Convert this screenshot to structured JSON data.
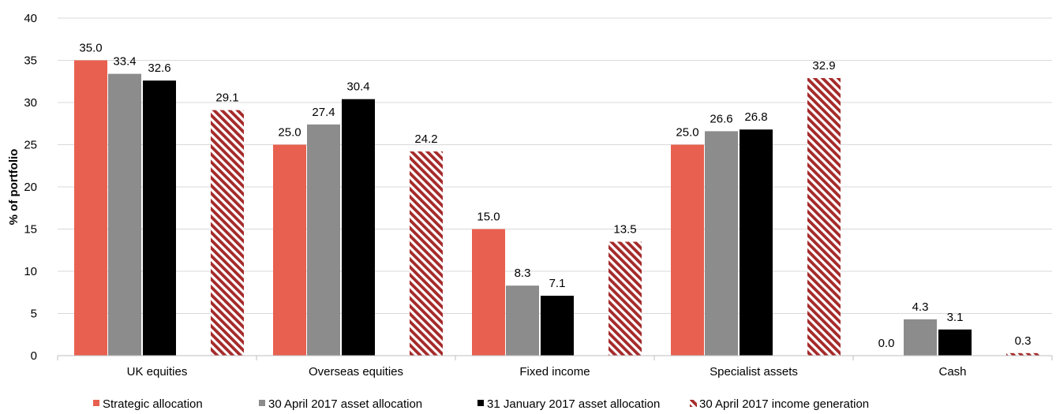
{
  "chart_data": {
    "type": "bar",
    "title": "",
    "xlabel": "",
    "ylabel": "% of portfolio",
    "ylim": [
      0,
      40
    ],
    "yticks": [
      0,
      5,
      10,
      15,
      20,
      25,
      30,
      35,
      40
    ],
    "grid": true,
    "legend_position": "bottom",
    "categories": [
      "UK equities",
      "Overseas equities",
      "Fixed income",
      "Specialist assets",
      "Cash"
    ],
    "series": [
      {
        "name": "Strategic allocation",
        "color": "#E8604F",
        "pattern": "solid",
        "values": [
          35.0,
          25.0,
          15.0,
          25.0,
          0.0
        ],
        "labels": [
          "35.0",
          "25.0",
          "15.0",
          "25.0",
          "0.0"
        ]
      },
      {
        "name": "30 April 2017 asset allocation",
        "color": "#8C8C8C",
        "pattern": "solid",
        "values": [
          33.4,
          27.4,
          8.3,
          26.6,
          4.3
        ],
        "labels": [
          "33.4",
          "27.4",
          "8.3",
          "26.6",
          "4.3"
        ]
      },
      {
        "name": "31 January 2017 asset allocation",
        "color": "#000000",
        "pattern": "solid",
        "values": [
          32.6,
          30.4,
          7.1,
          26.8,
          3.1
        ],
        "labels": [
          "32.6",
          "30.4",
          "7.1",
          "26.8",
          "3.1"
        ]
      },
      {
        "name": "30 April 2017 income generation",
        "color": "#A52A2A",
        "pattern": "diagonal-stripes",
        "values": [
          29.1,
          24.2,
          13.5,
          32.9,
          0.3
        ],
        "labels": [
          "29.1",
          "24.2",
          "13.5",
          "32.9",
          "0.3"
        ]
      }
    ]
  }
}
